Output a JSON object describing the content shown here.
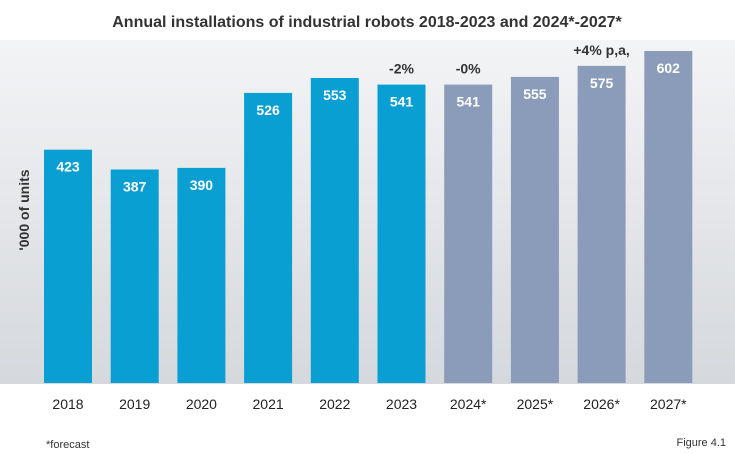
{
  "chart_data": {
    "type": "bar",
    "title": "Annual installations of industrial robots 2018-2023 and 2024*-2027*",
    "xlabel": "",
    "ylabel": "'000 of units",
    "ylim": [
      0,
      640
    ],
    "grid": false,
    "categories": [
      "2018",
      "2019",
      "2020",
      "2021",
      "2022",
      "2023",
      "2024*",
      "2025*",
      "2026*",
      "2027*"
    ],
    "values": [
      423,
      387,
      390,
      526,
      553,
      541,
      541,
      555,
      575,
      602
    ],
    "data_labels": [
      "423",
      "387",
      "390",
      "526",
      "553",
      "541",
      "541",
      "555",
      "575",
      "602"
    ],
    "series_kind": [
      "actual",
      "actual",
      "actual",
      "actual",
      "actual",
      "actual",
      "forecast",
      "forecast",
      "forecast",
      "forecast"
    ],
    "colors": {
      "actual": "#0a9fd2",
      "forecast": "#8a9cb9",
      "background_top": "#f3f4f6",
      "background_bottom": "#d5d8dc"
    },
    "annotations": [
      {
        "text": "-2%",
        "category": "2023"
      },
      {
        "text": "-0%",
        "category": "2024*"
      },
      {
        "text": "+4% p,a,",
        "category": "2026*"
      }
    ],
    "footnote": "*forecast",
    "figure_label": "Figure 4.1"
  }
}
